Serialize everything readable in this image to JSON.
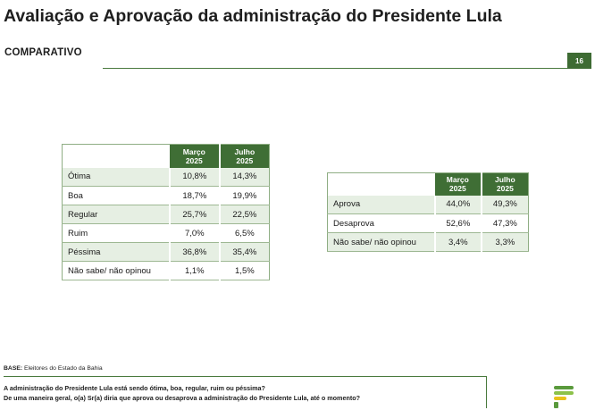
{
  "header": {
    "title": "Avaliação e Aprovação da administração do Presidente Lula",
    "subtitle": "COMPARATIVO",
    "page_number": "16"
  },
  "table_left": {
    "columns": [
      "Março 2025",
      "Julho 2025"
    ],
    "rows": [
      {
        "label": "Ótima",
        "mar": "10,8%",
        "jul": "14,3%"
      },
      {
        "label": "Boa",
        "mar": "18,7%",
        "jul": "19,9%"
      },
      {
        "label": "Regular",
        "mar": "25,7%",
        "jul": "22,5%"
      },
      {
        "label": "Ruim",
        "mar": "7,0%",
        "jul": "6,5%"
      },
      {
        "label": "Péssima",
        "mar": "36,8%",
        "jul": "35,4%"
      },
      {
        "label": "Não sabe/ não opinou",
        "mar": "1,1%",
        "jul": "1,5%"
      }
    ]
  },
  "table_right": {
    "columns": [
      "Março 2025",
      "Julho 2025"
    ],
    "rows": [
      {
        "label": "Aprova",
        "mar": "44,0%",
        "jul": "49,3%"
      },
      {
        "label": "Desaprova",
        "mar": "52,6%",
        "jul": "47,3%"
      },
      {
        "label": "Não sabe/ não opinou",
        "mar": "3,4%",
        "jul": "3,3%"
      }
    ]
  },
  "footer": {
    "base_label": "BASE:",
    "base_text": " Eleitores do Estado da Bahia",
    "question_1": "A administração do Presidente Lula está sendo ótima, boa, regular, ruim ou péssima?",
    "question_2": "De uma maneira geral, o(a) Sr(a) diria que aprova ou desaprova a administração do Presidente Lula, até o momento?"
  },
  "colors": {
    "accent_green": "#3f6e35",
    "row_shade": "#e6efe3",
    "logo_green": "#5a9a3c",
    "logo_yellow": "#e8c21a"
  },
  "icons": {
    "logo": "pollster-logo"
  }
}
